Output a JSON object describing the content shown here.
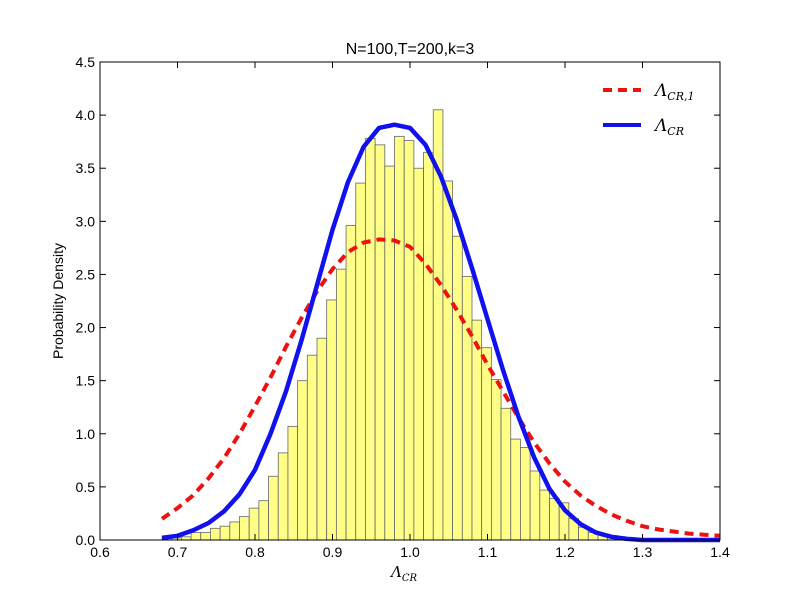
{
  "chart_data": {
    "type": "bar",
    "title": "N=100,T=200,k=3",
    "xlabel": "Λ",
    "xlabel_sub": "CR",
    "ylabel": "Probability Density",
    "xlim": [
      0.6,
      1.4
    ],
    "ylim": [
      0.0,
      4.5
    ],
    "x_ticks": [
      "0.6",
      "0.7",
      "0.8",
      "0.9",
      "1.0",
      "1.1",
      "1.2",
      "1.3",
      "1.4"
    ],
    "y_ticks": [
      "0.0",
      "0.5",
      "1.0",
      "1.5",
      "2.0",
      "2.5",
      "3.0",
      "3.5",
      "4.0",
      "4.5"
    ],
    "grid": false,
    "legend_position": "top-right",
    "histogram": {
      "bin_start": 0.68,
      "bin_width": 0.0125,
      "color": "#ffff88",
      "edge_color": "#666666",
      "values": [
        0.02,
        0.02,
        0.03,
        0.07,
        0.07,
        0.11,
        0.13,
        0.17,
        0.22,
        0.3,
        0.37,
        0.6,
        0.82,
        1.07,
        1.5,
        1.74,
        1.9,
        2.26,
        2.55,
        2.96,
        3.36,
        3.78,
        3.72,
        3.52,
        3.8,
        3.76,
        3.5,
        3.65,
        4.05,
        3.38,
        2.86,
        2.48,
        2.07,
        1.81,
        1.51,
        1.24,
        0.95,
        0.87,
        0.65,
        0.47,
        0.39,
        0.35,
        0.2,
        0.12,
        0.07,
        0.05,
        0.04,
        0.02,
        0.01,
        0.01,
        0.0
      ]
    },
    "series": [
      {
        "name": "Λ",
        "name_sub": "CR,1",
        "style": "dashed",
        "color": "#ee1111",
        "x": [
          0.68,
          0.7,
          0.72,
          0.74,
          0.76,
          0.78,
          0.8,
          0.82,
          0.84,
          0.86,
          0.88,
          0.9,
          0.92,
          0.94,
          0.96,
          0.98,
          1.0,
          1.02,
          1.04,
          1.06,
          1.08,
          1.1,
          1.12,
          1.14,
          1.16,
          1.18,
          1.2,
          1.22,
          1.24,
          1.26,
          1.28,
          1.3,
          1.32,
          1.34,
          1.36,
          1.38,
          1.4
        ],
        "y": [
          0.2,
          0.3,
          0.42,
          0.58,
          0.77,
          1.0,
          1.26,
          1.53,
          1.82,
          2.09,
          2.34,
          2.55,
          2.71,
          2.8,
          2.83,
          2.82,
          2.76,
          2.6,
          2.4,
          2.17,
          1.92,
          1.65,
          1.4,
          1.15,
          0.92,
          0.72,
          0.55,
          0.42,
          0.32,
          0.24,
          0.18,
          0.13,
          0.1,
          0.08,
          0.06,
          0.05,
          0.04
        ]
      },
      {
        "name": "Λ",
        "name_sub": "CR",
        "style": "solid",
        "color": "#1111ee",
        "x": [
          0.68,
          0.7,
          0.72,
          0.74,
          0.76,
          0.78,
          0.8,
          0.82,
          0.84,
          0.86,
          0.88,
          0.9,
          0.92,
          0.94,
          0.96,
          0.98,
          1.0,
          1.02,
          1.04,
          1.06,
          1.08,
          1.1,
          1.12,
          1.14,
          1.16,
          1.18,
          1.2,
          1.22,
          1.24,
          1.26,
          1.28,
          1.3,
          1.32,
          1.34,
          1.36,
          1.38,
          1.4
        ],
        "y": [
          0.02,
          0.04,
          0.09,
          0.16,
          0.27,
          0.43,
          0.66,
          1.0,
          1.4,
          1.88,
          2.4,
          2.92,
          3.37,
          3.7,
          3.88,
          3.91,
          3.88,
          3.72,
          3.42,
          3.02,
          2.56,
          2.08,
          1.6,
          1.16,
          0.78,
          0.48,
          0.28,
          0.15,
          0.07,
          0.03,
          0.01,
          0.0,
          0.0,
          0.0,
          0.0,
          0.0,
          0.0
        ]
      }
    ]
  }
}
